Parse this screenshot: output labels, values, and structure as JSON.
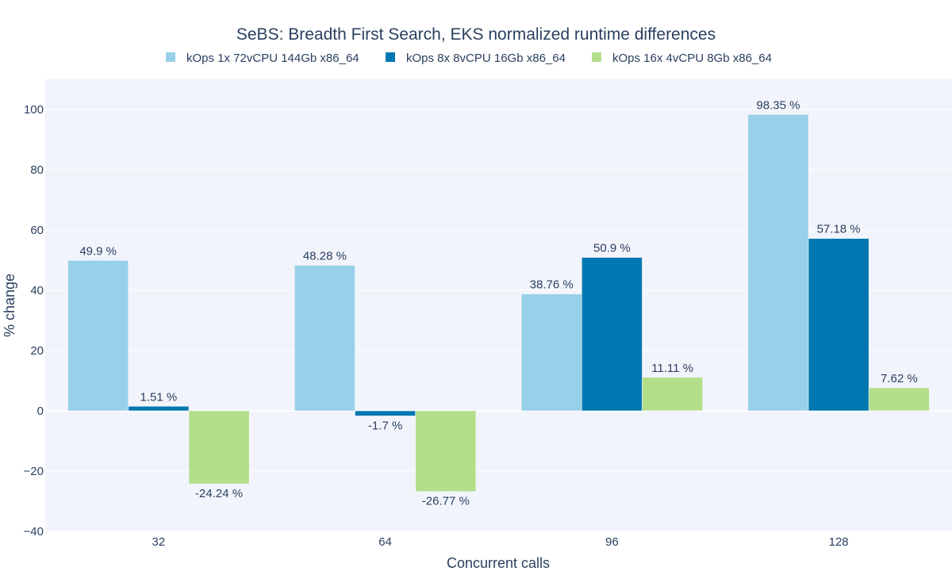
{
  "chart_data": {
    "type": "bar",
    "title": "SeBS: Breadth First Search, EKS normalized runtime differences",
    "xlabel": "Concurrent calls",
    "ylabel": "% change",
    "categories": [
      "32",
      "64",
      "96",
      "128"
    ],
    "ylim": [
      -40,
      110
    ],
    "yticks": [
      -40,
      -20,
      0,
      20,
      40,
      60,
      80,
      100
    ],
    "ytick_labels": [
      "−40",
      "−20",
      "0",
      "20",
      "40",
      "60",
      "80",
      "100"
    ],
    "legend_position": "top-center",
    "grid": true,
    "series": [
      {
        "name": "kOps 1x 72vCPU 144Gb x86_64",
        "color": "#98d0e9",
        "values": [
          49.9,
          48.28,
          38.76,
          98.35
        ],
        "labels": [
          "49.9 %",
          "48.28 %",
          "38.76 %",
          "98.35 %"
        ]
      },
      {
        "name": "kOps 8x 8vCPU 16Gb x86_64",
        "color": "#0077b1",
        "values": [
          1.51,
          -1.7,
          50.9,
          57.18
        ],
        "labels": [
          "1.51 %",
          "-1.7 %",
          "50.9 %",
          "57.18 %"
        ]
      },
      {
        "name": "kOps 16x 4vCPU 8Gb x86_64",
        "color": "#b3df8b",
        "values": [
          -24.24,
          -26.77,
          11.11,
          7.62
        ],
        "labels": [
          "-24.24 %",
          "-26.77 %",
          "11.11 %",
          "7.62 %"
        ]
      }
    ]
  }
}
